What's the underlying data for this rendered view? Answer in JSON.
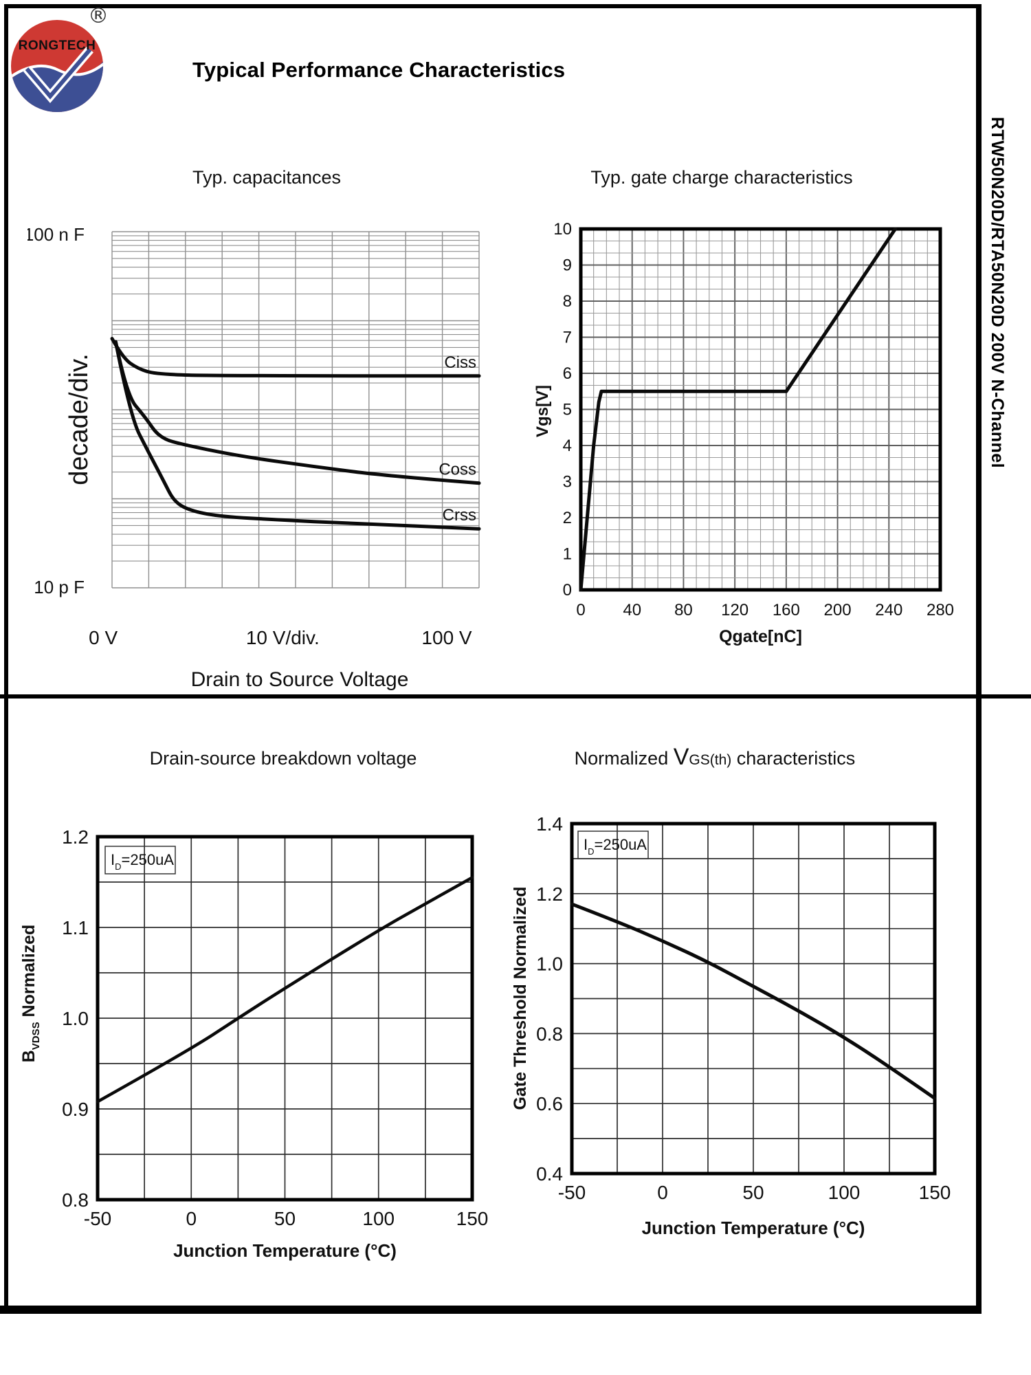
{
  "page": {
    "main_title": "Typical Performance Characteristics",
    "side_label": "RTW50N20D/RTA50N20D 200V N-Channel",
    "logo": {
      "brand": "RONGTECH",
      "registered": "®"
    }
  },
  "chart_data": [
    {
      "id": "capacitances",
      "type": "line",
      "title": "Typ. capacitances",
      "x_axis": {
        "label": "Drain to Source Voltage",
        "scale": "linear",
        "range_V": [
          0,
          100
        ],
        "tick_labels": [
          "0  V",
          "10  V/div.",
          "100  V"
        ]
      },
      "y_axis": {
        "label": "decade/div.",
        "scale": "log",
        "top_label": "100 n F",
        "bottom_label": "10 p F",
        "range_pF": [
          10,
          100000
        ],
        "decades": 4
      },
      "series": [
        {
          "name": "Ciss",
          "points": [
            [
              0,
              6300
            ],
            [
              3,
              3800
            ],
            [
              7,
              2900
            ],
            [
              12,
              2500
            ],
            [
              30,
              2400
            ],
            [
              100,
              2400
            ]
          ]
        },
        {
          "name": "Coss",
          "points": [
            [
              1,
              5800
            ],
            [
              4,
              1450
            ],
            [
              9,
              830
            ],
            [
              13,
              480
            ],
            [
              20,
              400
            ],
            [
              35,
              300
            ],
            [
              55,
              230
            ],
            [
              75,
              180
            ],
            [
              100,
              150
            ]
          ]
        },
        {
          "name": "Crss",
          "points": [
            [
              1,
              5800
            ],
            [
              5,
              830
            ],
            [
              10,
              330
            ],
            [
              14,
              160
            ],
            [
              17,
              91
            ],
            [
              22,
              72
            ],
            [
              30,
              63
            ],
            [
              45,
              58
            ],
            [
              65,
              53
            ],
            [
              100,
              46
            ]
          ]
        }
      ]
    },
    {
      "id": "gate-charge",
      "type": "line",
      "title": "Typ. gate charge characteristics",
      "x_axis": {
        "label": "Qgate[nC]",
        "range": [
          0,
          280
        ],
        "tick_labels": [
          "0",
          "40",
          "80",
          "120",
          "160",
          "200",
          "240",
          "280"
        ]
      },
      "y_axis": {
        "label": "Vgs[V]",
        "range": [
          0,
          10
        ],
        "tick_labels": [
          "0",
          "1",
          "2",
          "3",
          "4",
          "5",
          "6",
          "7",
          "8",
          "9",
          "10"
        ]
      },
      "series": [
        {
          "name": "Vgs",
          "points": [
            [
              0,
              0
            ],
            [
              10,
              4
            ],
            [
              14,
              5.2
            ],
            [
              16,
              5.5
            ],
            [
              160,
              5.5
            ],
            [
              245,
              10
            ]
          ]
        }
      ]
    },
    {
      "id": "breakdown-voltage",
      "type": "line",
      "title": "Drain-source breakdown voltage",
      "annotation": {
        "base": "I",
        "sub": "D",
        "rest": "=250uA"
      },
      "x_axis": {
        "label": "Junction Temperature (°C)",
        "range": [
          -50,
          150
        ],
        "tick_labels": [
          "-50",
          "0",
          "50",
          "100",
          "150"
        ]
      },
      "y_axis": {
        "label_parts": {
          "base": "B",
          "sub": "VDSS",
          "rest": " Normalized"
        },
        "range": [
          0.8,
          1.2
        ],
        "tick_labels": [
          "0.8",
          "0.9",
          "1.0",
          "1.1",
          "1.2"
        ]
      },
      "series": [
        {
          "name": "BVDSS normalized",
          "points": [
            [
              -50,
              0.908
            ],
            [
              0,
              0.966
            ],
            [
              25,
              1.0
            ],
            [
              50,
              1.033
            ],
            [
              100,
              1.097
            ],
            [
              125,
              1.126
            ],
            [
              150,
              1.155
            ]
          ]
        }
      ]
    },
    {
      "id": "vgs-threshold",
      "type": "line",
      "title_parts": {
        "pre": "Normalized ",
        "base": "V",
        "sub": "GS(th)",
        "post": " characteristics"
      },
      "annotation": {
        "base": "I",
        "sub": "D",
        "rest": "=250uA"
      },
      "x_axis": {
        "label": "Junction Temperature (°C)",
        "range": [
          -50,
          150
        ],
        "tick_labels": [
          "-50",
          "0",
          "50",
          "100",
          "150"
        ]
      },
      "y_axis": {
        "label": "Gate Threshold Normalized",
        "range": [
          0.4,
          1.4
        ],
        "tick_labels": [
          "0.4",
          "0.6",
          "0.8",
          "1.0",
          "1.2",
          "1.4"
        ]
      },
      "series": [
        {
          "name": "VGS(th) normalized",
          "points": [
            [
              -50,
              1.17
            ],
            [
              -25,
              1.12
            ],
            [
              0,
              1.065
            ],
            [
              25,
              1.005
            ],
            [
              50,
              0.935
            ],
            [
              75,
              0.865
            ],
            [
              100,
              0.79
            ],
            [
              125,
              0.705
            ],
            [
              150,
              0.615
            ]
          ]
        }
      ]
    }
  ]
}
